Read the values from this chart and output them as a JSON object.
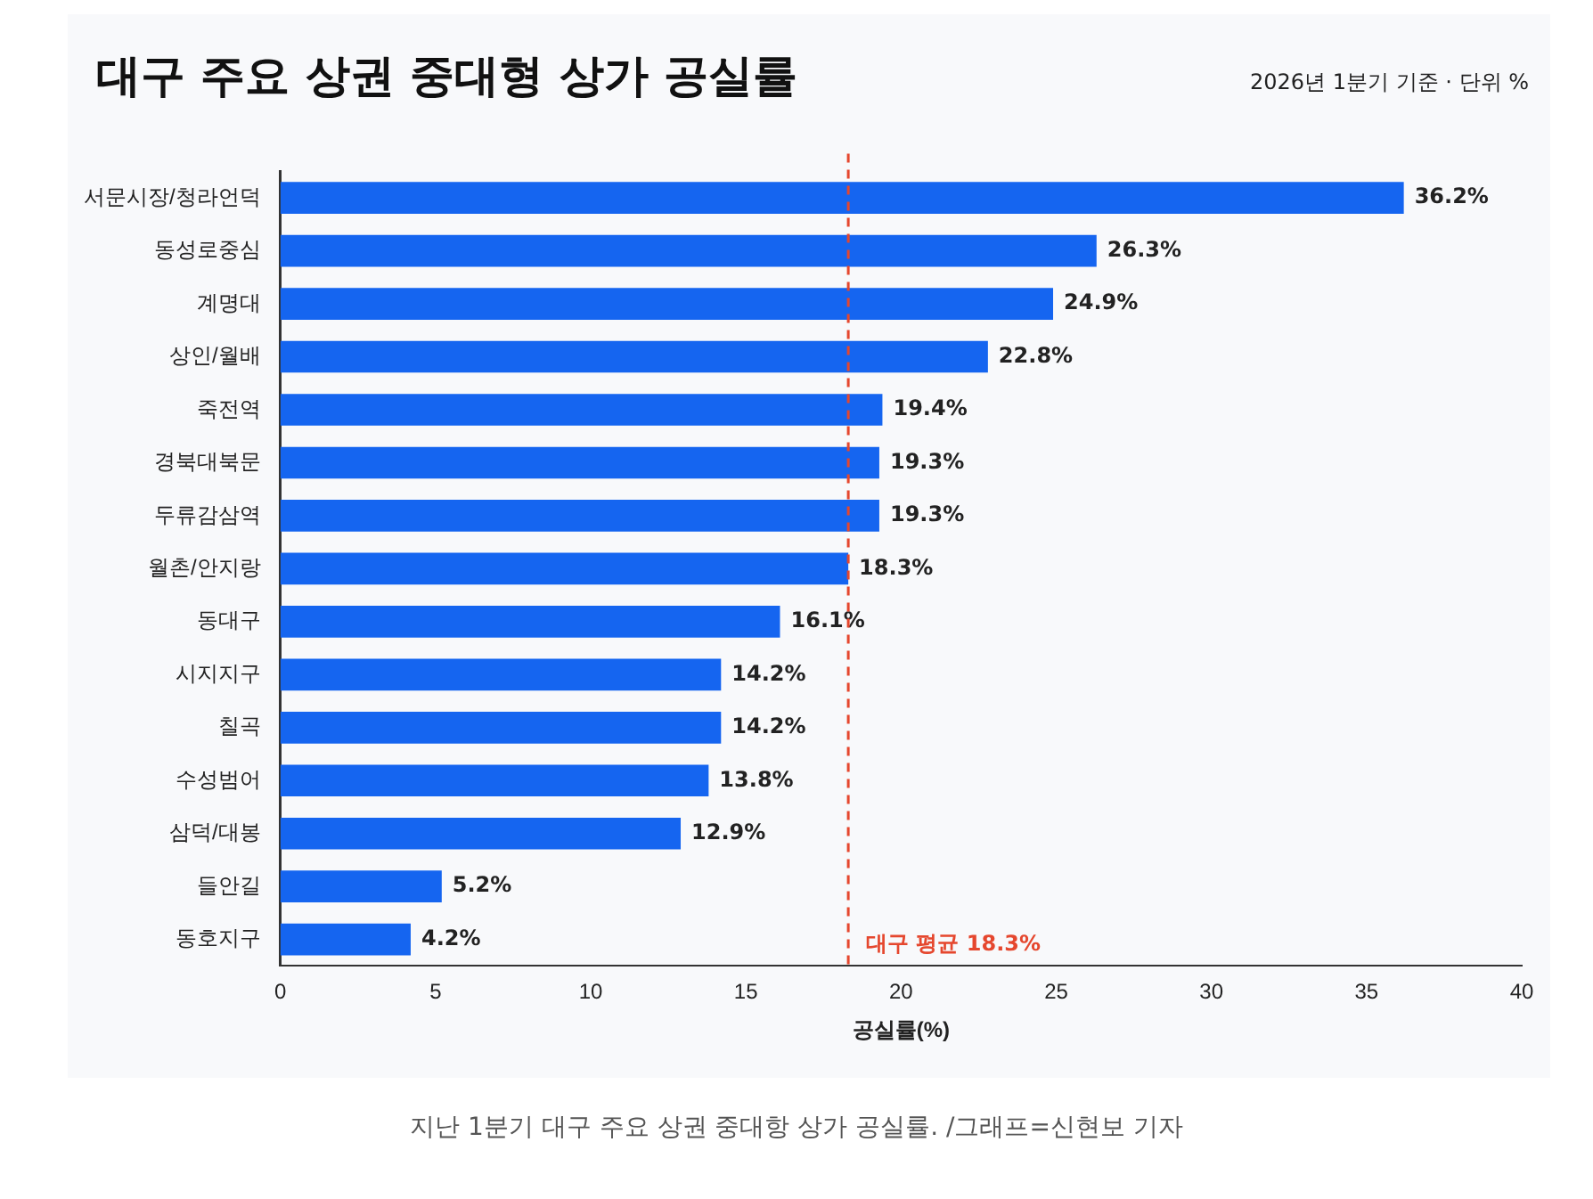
{
  "chart_data": {
    "type": "bar",
    "orientation": "horizontal",
    "title": "대구 주요 상권 중대형 상가 공실률",
    "subtitle": "2026년 1분기 기준 · 단위 %",
    "xlabel": "공실률(%)",
    "categories": [
      "서문시장/청라언덕",
      "동성로중심",
      "계명대",
      "상인/월배",
      "죽전역",
      "경북대북문",
      "두류감삼역",
      "월촌/안지랑",
      "동대구",
      "시지지구",
      "칠곡",
      "수성범어",
      "삼덕/대봉",
      "들안길",
      "동호지구"
    ],
    "values": [
      36.2,
      26.3,
      24.9,
      22.8,
      19.4,
      19.3,
      19.3,
      18.3,
      16.1,
      14.2,
      14.2,
      13.8,
      12.9,
      5.2,
      4.2
    ],
    "value_labels": [
      "36.2%",
      "26.3%",
      "24.9%",
      "22.8%",
      "19.4%",
      "19.3%",
      "19.3%",
      "18.3%",
      "16.1%",
      "14.2%",
      "14.2%",
      "13.8%",
      "12.9%",
      "5.2%",
      "4.2%"
    ],
    "color": "#1565f0",
    "xlim": [
      0,
      40
    ],
    "xticks": [
      0,
      5,
      10,
      15,
      20,
      25,
      30,
      35,
      40
    ],
    "grid": false,
    "legend": false,
    "ref_lines": [
      {
        "axis": "x",
        "value": 18.3,
        "label": "대구 평균 18.3%",
        "color": "#e5472e",
        "line_style": "dashed"
      }
    ],
    "annotations": [
      "지난 1분기 대구 주요 상권 중대항 상가 공실률. /그래프=신현보 기자"
    ]
  }
}
